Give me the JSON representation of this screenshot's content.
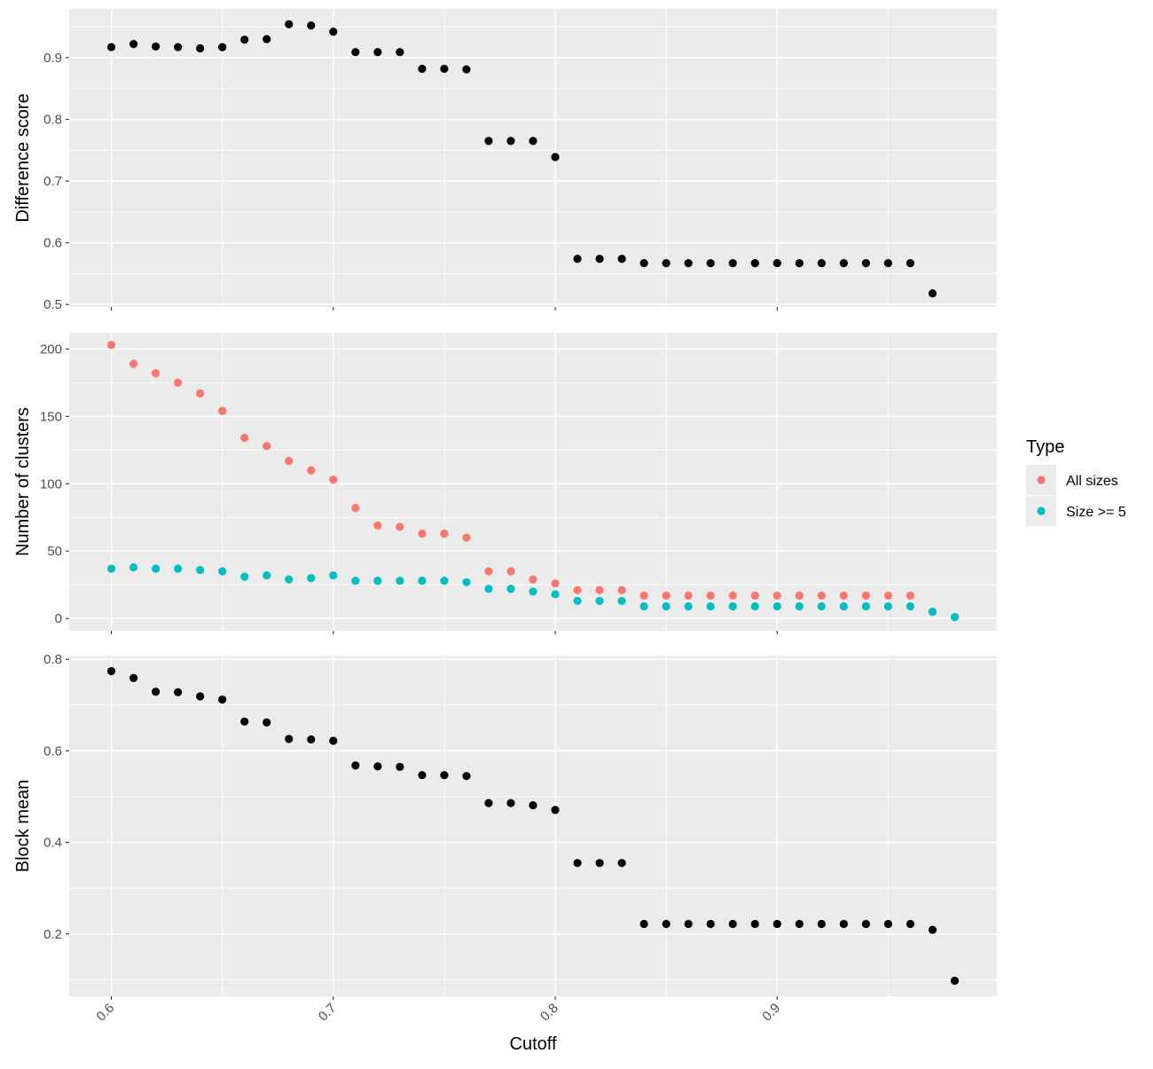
{
  "figure": {
    "xlabel": "Cutoff",
    "legend": {
      "title": "Type",
      "placement": "right"
    }
  },
  "chart_data": [
    {
      "type": "scatter",
      "ylabel": "Difference score",
      "xlim": [
        0.581,
        0.999
      ],
      "ylim": [
        0.496,
        0.979
      ],
      "yticks": [
        0.5,
        0.6,
        0.7,
        0.8,
        0.9
      ],
      "xticks": [
        0.6,
        0.7,
        0.8,
        0.9
      ],
      "grid": true,
      "series": [
        {
          "color": "#000000",
          "points": [
            [
              0.6,
              0.917
            ],
            [
              0.61,
              0.922
            ],
            [
              0.62,
              0.918
            ],
            [
              0.63,
              0.917
            ],
            [
              0.64,
              0.915
            ],
            [
              0.65,
              0.917
            ],
            [
              0.66,
              0.929
            ],
            [
              0.67,
              0.93
            ],
            [
              0.68,
              0.954
            ],
            [
              0.69,
              0.952
            ],
            [
              0.7,
              0.942
            ],
            [
              0.71,
              0.909
            ],
            [
              0.72,
              0.909
            ],
            [
              0.73,
              0.909
            ],
            [
              0.74,
              0.882
            ],
            [
              0.75,
              0.882
            ],
            [
              0.76,
              0.881
            ],
            [
              0.77,
              0.765
            ],
            [
              0.78,
              0.765
            ],
            [
              0.79,
              0.765
            ],
            [
              0.8,
              0.739
            ],
            [
              0.81,
              0.574
            ],
            [
              0.82,
              0.574
            ],
            [
              0.83,
              0.574
            ],
            [
              0.84,
              0.567
            ],
            [
              0.85,
              0.567
            ],
            [
              0.86,
              0.567
            ],
            [
              0.87,
              0.567
            ],
            [
              0.88,
              0.567
            ],
            [
              0.89,
              0.567
            ],
            [
              0.9,
              0.567
            ],
            [
              0.91,
              0.567
            ],
            [
              0.92,
              0.567
            ],
            [
              0.93,
              0.567
            ],
            [
              0.94,
              0.567
            ],
            [
              0.95,
              0.567
            ],
            [
              0.96,
              0.567
            ],
            [
              0.97,
              0.518
            ]
          ]
        }
      ]
    },
    {
      "type": "scatter",
      "ylabel": "Number of clusters",
      "xlim": [
        0.581,
        0.999
      ],
      "ylim": [
        -9.1,
        212.1
      ],
      "yticks": [
        0,
        50,
        100,
        150,
        200
      ],
      "xticks": [
        0.6,
        0.7,
        0.8,
        0.9
      ],
      "grid": true,
      "series": [
        {
          "name": "All sizes",
          "color": "#F8766D",
          "points": [
            [
              0.6,
              203
            ],
            [
              0.61,
              189
            ],
            [
              0.62,
              182
            ],
            [
              0.63,
              175
            ],
            [
              0.64,
              167
            ],
            [
              0.65,
              154
            ],
            [
              0.66,
              134
            ],
            [
              0.67,
              128
            ],
            [
              0.68,
              117
            ],
            [
              0.69,
              110
            ],
            [
              0.7,
              103
            ],
            [
              0.71,
              82
            ],
            [
              0.72,
              69
            ],
            [
              0.73,
              68
            ],
            [
              0.74,
              63
            ],
            [
              0.75,
              63
            ],
            [
              0.76,
              60
            ],
            [
              0.77,
              35
            ],
            [
              0.78,
              35
            ],
            [
              0.79,
              29
            ],
            [
              0.8,
              26
            ],
            [
              0.81,
              21
            ],
            [
              0.82,
              21
            ],
            [
              0.83,
              21
            ],
            [
              0.84,
              17
            ],
            [
              0.85,
              17
            ],
            [
              0.86,
              17
            ],
            [
              0.87,
              17
            ],
            [
              0.88,
              17
            ],
            [
              0.89,
              17
            ],
            [
              0.9,
              17
            ],
            [
              0.91,
              17
            ],
            [
              0.92,
              17
            ],
            [
              0.93,
              17
            ],
            [
              0.94,
              17
            ],
            [
              0.95,
              17
            ],
            [
              0.96,
              17
            ],
            [
              0.97,
              5
            ],
            [
              0.98,
              1
            ]
          ]
        },
        {
          "name": "Size >= 5",
          "color": "#00BFC4",
          "points": [
            [
              0.6,
              37
            ],
            [
              0.61,
              38
            ],
            [
              0.62,
              37
            ],
            [
              0.63,
              37
            ],
            [
              0.64,
              36
            ],
            [
              0.65,
              35
            ],
            [
              0.66,
              31
            ],
            [
              0.67,
              32
            ],
            [
              0.68,
              29
            ],
            [
              0.69,
              30
            ],
            [
              0.7,
              32
            ],
            [
              0.71,
              28
            ],
            [
              0.72,
              28
            ],
            [
              0.73,
              28
            ],
            [
              0.74,
              28
            ],
            [
              0.75,
              28
            ],
            [
              0.76,
              27
            ],
            [
              0.77,
              22
            ],
            [
              0.78,
              22
            ],
            [
              0.79,
              20
            ],
            [
              0.8,
              18
            ],
            [
              0.81,
              13
            ],
            [
              0.82,
              13
            ],
            [
              0.83,
              13
            ],
            [
              0.84,
              9
            ],
            [
              0.85,
              9
            ],
            [
              0.86,
              9
            ],
            [
              0.87,
              9
            ],
            [
              0.88,
              9
            ],
            [
              0.89,
              9
            ],
            [
              0.9,
              9
            ],
            [
              0.91,
              9
            ],
            [
              0.92,
              9
            ],
            [
              0.93,
              9
            ],
            [
              0.94,
              9
            ],
            [
              0.95,
              9
            ],
            [
              0.96,
              9
            ],
            [
              0.97,
              5
            ],
            [
              0.98,
              1
            ]
          ]
        }
      ]
    },
    {
      "type": "scatter",
      "ylabel": "Block mean",
      "xlim": [
        0.581,
        0.999
      ],
      "ylim": [
        0.064,
        0.808
      ],
      "yticks": [
        0.2,
        0.4,
        0.6,
        0.8
      ],
      "xticks": [
        0.6,
        0.7,
        0.8,
        0.9
      ],
      "grid": true,
      "series": [
        {
          "color": "#000000",
          "points": [
            [
              0.6,
              0.774
            ],
            [
              0.61,
              0.759
            ],
            [
              0.62,
              0.729
            ],
            [
              0.63,
              0.728
            ],
            [
              0.64,
              0.719
            ],
            [
              0.65,
              0.712
            ],
            [
              0.66,
              0.664
            ],
            [
              0.67,
              0.662
            ],
            [
              0.68,
              0.626
            ],
            [
              0.69,
              0.625
            ],
            [
              0.7,
              0.622
            ],
            [
              0.71,
              0.568
            ],
            [
              0.72,
              0.566
            ],
            [
              0.73,
              0.565
            ],
            [
              0.74,
              0.547
            ],
            [
              0.75,
              0.547
            ],
            [
              0.76,
              0.545
            ],
            [
              0.77,
              0.486
            ],
            [
              0.78,
              0.486
            ],
            [
              0.79,
              0.481
            ],
            [
              0.8,
              0.471
            ],
            [
              0.81,
              0.355
            ],
            [
              0.82,
              0.355
            ],
            [
              0.83,
              0.355
            ],
            [
              0.84,
              0.222
            ],
            [
              0.85,
              0.222
            ],
            [
              0.86,
              0.222
            ],
            [
              0.87,
              0.222
            ],
            [
              0.88,
              0.222
            ],
            [
              0.89,
              0.222
            ],
            [
              0.9,
              0.222
            ],
            [
              0.91,
              0.222
            ],
            [
              0.92,
              0.222
            ],
            [
              0.93,
              0.222
            ],
            [
              0.94,
              0.222
            ],
            [
              0.95,
              0.222
            ],
            [
              0.96,
              0.222
            ],
            [
              0.97,
              0.209
            ],
            [
              0.98,
              0.098
            ]
          ]
        }
      ]
    }
  ]
}
